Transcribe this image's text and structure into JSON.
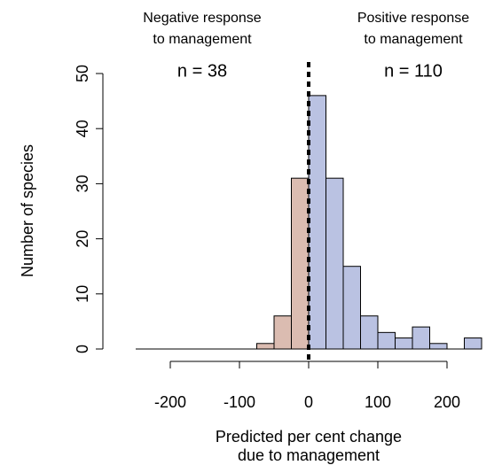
{
  "chart_data": {
    "type": "histogram",
    "bins": [
      -250,
      -225,
      -200,
      -175,
      -150,
      -125,
      -100,
      -75,
      -50,
      -25,
      0,
      25,
      50,
      75,
      100,
      125,
      150,
      175,
      200,
      225,
      250
    ],
    "values": [
      0,
      0,
      0,
      0,
      0,
      0,
      0,
      1,
      6,
      31,
      46,
      31,
      15,
      6,
      3,
      2,
      4,
      1,
      0,
      2
    ],
    "negative_color": "#dbbcb1",
    "positive_color": "#bac2e2",
    "xlim": [
      -250,
      250
    ],
    "xticks": [
      -200,
      -100,
      0,
      100,
      200
    ],
    "ylim": [
      0,
      50
    ],
    "yticks": [
      0,
      10,
      20,
      30,
      40,
      50
    ],
    "vline": 0,
    "xlabel": [
      "Predicted per cent change",
      "due to management"
    ],
    "ylabel": "Number of species",
    "annotations": [
      {
        "text": [
          "Negative response",
          "to management"
        ],
        "n": "n = 38",
        "color": "#a93a2c"
      },
      {
        "text": [
          "Positive response",
          "to management"
        ],
        "n": "n = 110",
        "color": "#2d36a6"
      }
    ]
  }
}
